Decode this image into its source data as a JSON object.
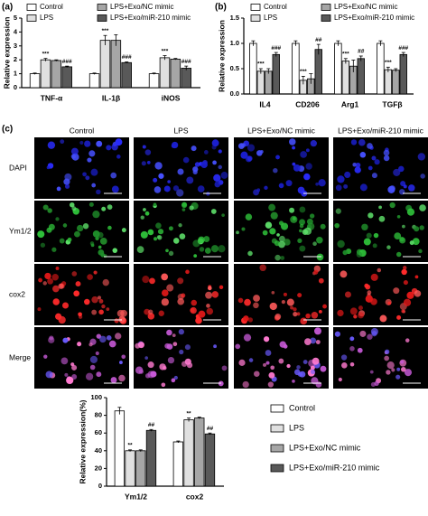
{
  "panels": {
    "a": "(a)",
    "b": "(b)",
    "c": "(c)"
  },
  "microscopy": {
    "columns": [
      "Control",
      "LPS",
      "LPS+Exo/NC mimic",
      "LPS+Exo/miR-210 mimic"
    ],
    "rows": [
      "DAPI",
      "Ym1/2",
      "cox2",
      "Merge"
    ]
  },
  "chart_data": [
    {
      "type": "bar",
      "y_label": "Relative expression",
      "categories": [
        "TNF-α",
        "IL-1β",
        "iNOS"
      ],
      "ylim": [
        0,
        5
      ],
      "yticks": [
        0,
        1,
        2,
        3,
        4,
        5
      ],
      "series": [
        {
          "name": "Control",
          "color": "#ffffff",
          "values": [
            1.0,
            1.0,
            1.0
          ],
          "errors": [
            0.05,
            0.05,
            0.05
          ]
        },
        {
          "name": "LPS",
          "color": "#e0e0e0",
          "values": [
            2.0,
            3.4,
            2.15
          ],
          "errors": [
            0.1,
            0.35,
            0.15
          ],
          "significance": [
            "***",
            "***",
            "***"
          ]
        },
        {
          "name": "LPS+Exo/NC mimic",
          "color": "#a6a6a6",
          "values": [
            1.95,
            3.4,
            2.05
          ],
          "errors": [
            0.05,
            0.4,
            0.05
          ]
        },
        {
          "name": "LPS+Exo/miR-210 mimic",
          "color": "#595959",
          "values": [
            1.5,
            1.8,
            1.4
          ],
          "errors": [
            0.05,
            0.05,
            0.15
          ],
          "significance": [
            "###",
            "###",
            "###"
          ]
        }
      ]
    },
    {
      "type": "bar",
      "y_label": "Relative expression",
      "categories": [
        "IL4",
        "CD206",
        "Arg1",
        "TGFβ"
      ],
      "ylim": [
        0,
        1.5
      ],
      "yticks": [
        {
          "value": 0,
          "label": "0.0"
        },
        0.5,
        {
          "value": 1,
          "label": "1.0"
        },
        1.5
      ],
      "series": [
        {
          "name": "Control",
          "color": "#ffffff",
          "values": [
            1.0,
            1.0,
            1.0,
            1.0
          ],
          "errors": [
            0.05,
            0.05,
            0.05,
            0.05
          ]
        },
        {
          "name": "LPS",
          "color": "#e0e0e0",
          "values": [
            0.45,
            0.27,
            0.65,
            0.48
          ],
          "errors": [
            0.05,
            0.08,
            0.05,
            0.05
          ],
          "significance": [
            "***",
            "***",
            "***",
            "***"
          ]
        },
        {
          "name": "LPS+Exo/NC mimic",
          "color": "#a6a6a6",
          "values": [
            0.45,
            0.3,
            0.55,
            0.47
          ],
          "errors": [
            0.05,
            0.1,
            0.12,
            0.03
          ]
        },
        {
          "name": "LPS+Exo/miR-210 mimic",
          "color": "#595959",
          "values": [
            0.78,
            0.88,
            0.7,
            0.78
          ],
          "errors": [
            0.04,
            0.1,
            0.05,
            0.04
          ],
          "significance": [
            "###",
            "##",
            "##",
            "###"
          ]
        }
      ]
    },
    {
      "type": "bar",
      "y_label": "Relative expression(%)",
      "categories": [
        "Ym1/2",
        "cox2"
      ],
      "ylim": [
        0,
        100
      ],
      "yticks": [
        0,
        20,
        40,
        60,
        80,
        100
      ],
      "series": [
        {
          "name": "Control",
          "color": "#ffffff",
          "values": [
            85,
            50
          ],
          "errors": [
            4,
            1
          ]
        },
        {
          "name": "LPS",
          "color": "#e0e0e0",
          "values": [
            40,
            75
          ],
          "errors": [
            1,
            2
          ],
          "significance": [
            "**",
            "**"
          ]
        },
        {
          "name": "LPS+Exo/NC mimic",
          "color": "#a6a6a6",
          "values": [
            40,
            77
          ],
          "errors": [
            1,
            1
          ]
        },
        {
          "name": "LPS+Exo/miR-210 mimic",
          "color": "#595959",
          "values": [
            63,
            59
          ],
          "errors": [
            1,
            1
          ],
          "significance": [
            "##",
            "##"
          ]
        }
      ]
    }
  ]
}
